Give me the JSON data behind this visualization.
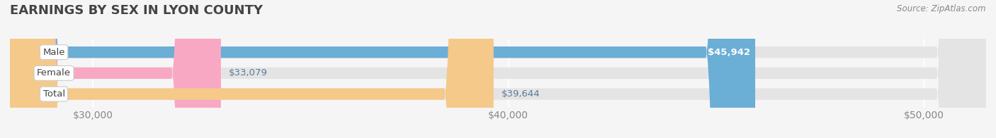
{
  "title": "EARNINGS BY SEX IN LYON COUNTY",
  "source": "Source: ZipAtlas.com",
  "categories": [
    "Male",
    "Female",
    "Total"
  ],
  "values": [
    45942,
    33079,
    39644
  ],
  "bar_colors": [
    "#6baed6",
    "#f9a8c4",
    "#f5c98a"
  ],
  "label_colors": [
    "#ffffff",
    "#5a7a9a",
    "#5a7a9a"
  ],
  "x_min": 28000,
  "x_max": 51500,
  "x_ticks": [
    30000,
    40000,
    50000
  ],
  "x_tick_labels": [
    "$30,000",
    "$40,000",
    "$50,000"
  ],
  "value_labels": [
    "$45,942",
    "$33,079",
    "$39,644"
  ],
  "background_color": "#f5f5f5",
  "bar_bg_color": "#e4e4e4",
  "title_fontsize": 13,
  "tick_fontsize": 10,
  "bar_height": 0.55,
  "fig_width": 14.06,
  "fig_height": 1.96
}
